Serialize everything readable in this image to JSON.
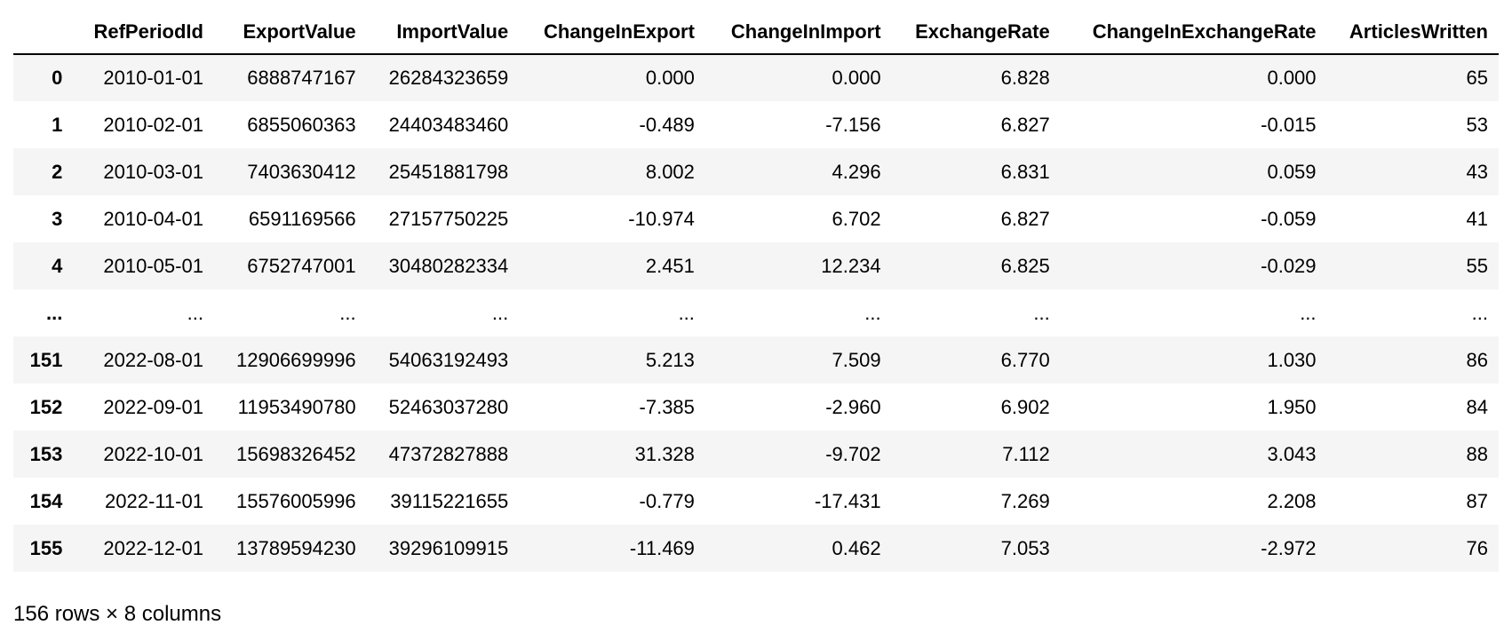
{
  "table": {
    "index_header": "",
    "columns": [
      "RefPeriodId",
      "ExportValue",
      "ImportValue",
      "ChangeInExport",
      "ChangeInImport",
      "ExchangeRate",
      "ChangeInExchangeRate",
      "ArticlesWritten"
    ],
    "rows": [
      {
        "index": "0",
        "cells": [
          "2010-01-01",
          "6888747167",
          "26284323659",
          "0.000",
          "0.000",
          "6.828",
          "0.000",
          "65"
        ]
      },
      {
        "index": "1",
        "cells": [
          "2010-02-01",
          "6855060363",
          "24403483460",
          "-0.489",
          "-7.156",
          "6.827",
          "-0.015",
          "53"
        ]
      },
      {
        "index": "2",
        "cells": [
          "2010-03-01",
          "7403630412",
          "25451881798",
          "8.002",
          "4.296",
          "6.831",
          "0.059",
          "43"
        ]
      },
      {
        "index": "3",
        "cells": [
          "2010-04-01",
          "6591169566",
          "27157750225",
          "-10.974",
          "6.702",
          "6.827",
          "-0.059",
          "41"
        ]
      },
      {
        "index": "4",
        "cells": [
          "2010-05-01",
          "6752747001",
          "30480282334",
          "2.451",
          "12.234",
          "6.825",
          "-0.029",
          "55"
        ]
      },
      {
        "index": "...",
        "cells": [
          "...",
          "...",
          "...",
          "...",
          "...",
          "...",
          "...",
          "..."
        ]
      },
      {
        "index": "151",
        "cells": [
          "2022-08-01",
          "12906699996",
          "54063192493",
          "5.213",
          "7.509",
          "6.770",
          "1.030",
          "86"
        ]
      },
      {
        "index": "152",
        "cells": [
          "2022-09-01",
          "11953490780",
          "52463037280",
          "-7.385",
          "-2.960",
          "6.902",
          "1.950",
          "84"
        ]
      },
      {
        "index": "153",
        "cells": [
          "2022-10-01",
          "15698326452",
          "47372827888",
          "31.328",
          "-9.702",
          "7.112",
          "3.043",
          "88"
        ]
      },
      {
        "index": "154",
        "cells": [
          "2022-11-01",
          "15576005996",
          "39115221655",
          "-0.779",
          "-17.431",
          "7.269",
          "2.208",
          "87"
        ]
      },
      {
        "index": "155",
        "cells": [
          "2022-12-01",
          "13789594230",
          "39296109915",
          "-11.469",
          "0.462",
          "7.053",
          "-2.972",
          "76"
        ]
      }
    ]
  },
  "shape_caption": "156 rows × 8 columns",
  "colors": {
    "striped_row": "#f5f5f5",
    "header_rule": "#000000",
    "text": "#000000"
  }
}
